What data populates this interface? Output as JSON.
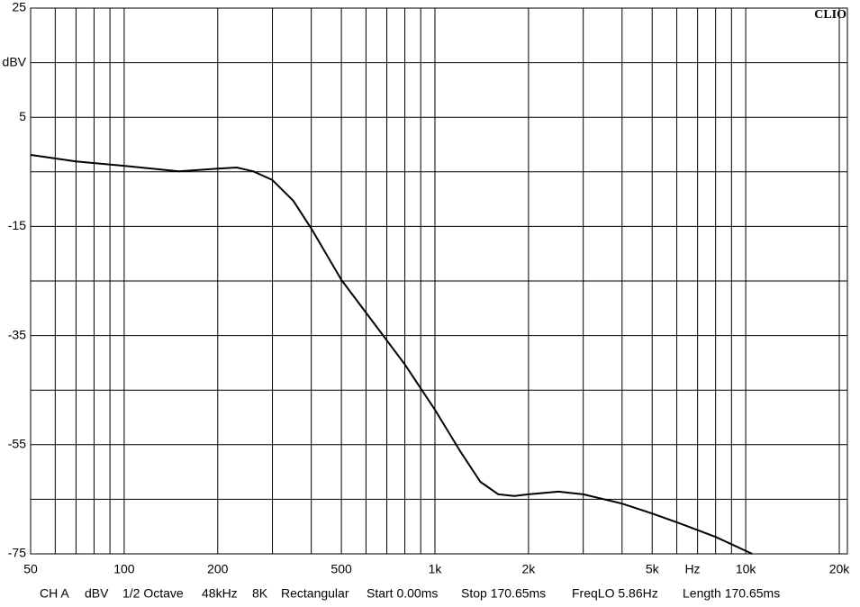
{
  "chart_data": {
    "type": "line",
    "title": "CLIO",
    "x_label": "Hz",
    "log_x": true,
    "xlim": [
      50,
      20000
    ],
    "xticks": [
      50,
      100,
      200,
      500,
      {
        "value": 1000,
        "label": "1k"
      },
      {
        "value": 2000,
        "label": "2k"
      },
      {
        "value": 5000,
        "label": "5k"
      },
      {
        "value": 10000,
        "label": "10k"
      },
      {
        "value": 20000,
        "label": "20k"
      }
    ],
    "xminor": [
      60,
      70,
      80,
      90,
      300,
      400,
      600,
      700,
      800,
      900,
      3000,
      4000,
      6000,
      7000,
      8000,
      9000
    ],
    "ylim": [
      -75,
      25
    ],
    "yticks": [
      25,
      {
        "value": 15,
        "label": "dBV"
      },
      5,
      -15,
      -35,
      -55,
      -75
    ],
    "yminor": [
      -5,
      -25,
      -45,
      -65
    ],
    "grid": true,
    "color": "#000000",
    "x": [
      50,
      70,
      100,
      150,
      200,
      230,
      260,
      300,
      350,
      400,
      500,
      600,
      800,
      1000,
      1200,
      1400,
      1600,
      1800,
      2000,
      2500,
      3000,
      4000,
      5000,
      6000,
      8000,
      10500
    ],
    "values": [
      -1.9,
      -3.1,
      -3.9,
      -4.9,
      -4.4,
      -4.2,
      -4.9,
      -6.5,
      -10.3,
      -15.4,
      -24.8,
      -30.8,
      -40.3,
      -48.6,
      -56,
      -61.8,
      -64.1,
      -64.4,
      -64.1,
      -63.6,
      -64.1,
      -65.8,
      -67.6,
      -69.2,
      -71.9,
      -75
    ],
    "footer": [
      "CH A",
      "dBV",
      "1/2 Octave",
      "48kHz",
      "8K",
      "Rectangular",
      "Start 0.00ms",
      "Stop 170.65ms",
      "FreqLO 5.86Hz",
      "Length 170.65ms"
    ]
  }
}
